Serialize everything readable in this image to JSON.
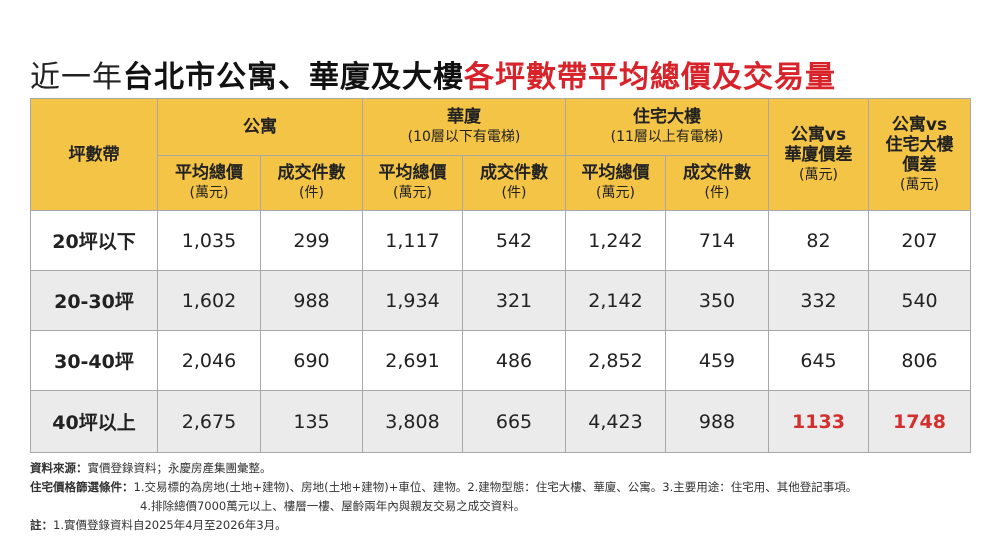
{
  "title": {
    "light": "近一年",
    "dark": "台北市公寓、華廈及大樓",
    "red": "各坪數帶平均總價及交易量"
  },
  "table": {
    "corner": "坪數帶",
    "groups": [
      {
        "name": "公寓"
      },
      {
        "name": "華廈",
        "note": "(10層以下有電梯)"
      },
      {
        "name": "住宅大樓",
        "note": "(11層以上有電梯)"
      }
    ],
    "subheaders": [
      {
        "name": "平均總價",
        "unit": "(萬元)"
      },
      {
        "name": "成交件數",
        "unit": "(件)"
      },
      {
        "name": "平均總價",
        "unit": "(萬元)"
      },
      {
        "name": "成交件數",
        "unit": "(件)"
      },
      {
        "name": "平均總價",
        "unit": "(萬元)"
      },
      {
        "name": "成交件數",
        "unit": "(件)"
      }
    ],
    "diffs": [
      {
        "lines": [
          "公寓vs",
          "華廈價差"
        ],
        "unit": "(萬元)"
      },
      {
        "lines": [
          "公寓vs",
          "住宅大樓",
          "價差"
        ],
        "unit": "(萬元)"
      }
    ],
    "rows": [
      [
        "20坪以下",
        "1,035",
        "299",
        "1,117",
        "542",
        "1,242",
        "714",
        "82",
        "207"
      ],
      [
        "20-30坪",
        "1,602",
        "988",
        "1,934",
        "321",
        "2,142",
        "350",
        "332",
        "540"
      ],
      [
        "30-40坪",
        "2,046",
        "690",
        "2,691",
        "486",
        "2,852",
        "459",
        "645",
        "806"
      ],
      [
        "40坪以上",
        "2,675",
        "135",
        "3,808",
        "665",
        "4,423",
        "988",
        "1133",
        "1748"
      ]
    ]
  },
  "notes": [
    {
      "label": "資料來源：",
      "text": "實價登錄資料；永慶房產集團彙整。"
    },
    {
      "label": "住宅價格篩選條件：",
      "text": "1.交易標的為房地(土地+建物)、房地(土地+建物)+車位、建物。2.建物型態：住宅大樓、華廈、公寓。3.主要用途：住宅用、其他登記事項。"
    },
    {
      "text": "4.排除總價7000萬元以上、樓層一樓、屋齡兩年內與親友交易之成交資料。"
    },
    {
      "label": "註：",
      "text": "1.實價登錄資料自2025年4月至2026年3月。"
    }
  ]
}
